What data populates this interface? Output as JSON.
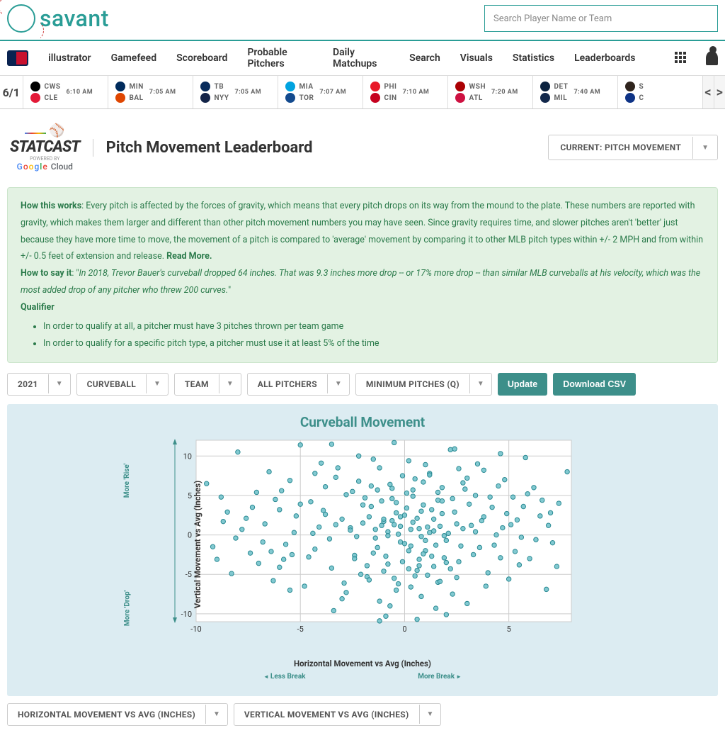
{
  "brand": "savant",
  "search_placeholder": "Search Player Name or Team",
  "nav": [
    "illustrator",
    "Gamefeed",
    "Scoreboard",
    "Probable Pitchers",
    "Daily Matchups",
    "Search",
    "Visuals",
    "Statistics",
    "Leaderboards"
  ],
  "scorebar": {
    "date": "6/1",
    "games": [
      {
        "away": "CWS",
        "home": "CLE",
        "time": "6:10 AM",
        "c1": "#000",
        "c2": "#e31937"
      },
      {
        "away": "MIN",
        "home": "BAL",
        "time": "7:05 AM",
        "c1": "#002b5c",
        "c2": "#df4601"
      },
      {
        "away": "TB",
        "home": "NYY",
        "time": "7:05 AM",
        "c1": "#092c5c",
        "c2": "#132448"
      },
      {
        "away": "MIA",
        "home": "TOR",
        "time": "7:07 AM",
        "c1": "#00a3e0",
        "c2": "#134a8e"
      },
      {
        "away": "PHI",
        "home": "CIN",
        "time": "7:10 AM",
        "c1": "#e81828",
        "c2": "#c6011f"
      },
      {
        "away": "WSH",
        "home": "ATL",
        "time": "7:20 AM",
        "c1": "#ab0003",
        "c2": "#ce1141"
      },
      {
        "away": "DET",
        "home": "MIL",
        "time": "7:40 AM",
        "c1": "#0c2340",
        "c2": "#12284b"
      },
      {
        "away": "S",
        "home": "C",
        "time": "",
        "c1": "#2f241d",
        "c2": "#0e3386"
      }
    ]
  },
  "page_title": "Pitch Movement Leaderboard",
  "current_dd": "CURRENT: PITCH MOVEMENT",
  "info": {
    "h1_label": "How this works",
    "h1_text": ": Every pitch is affected by the forces of gravity, which means that every pitch drops on its way from the mound to the plate. These numbers are reported with gravity, which makes them larger and different than other pitch movement numbers you may have seen. Since gravity requires time, and slower pitches aren't 'better' just because they have more time to move, the movement of a pitch is compared to 'average' movement by comparing it to other MLB pitch types within +/- 2 MPH and from within +/- 0.5 feet of extension and release. ",
    "readmore": "Read More.",
    "h2_label": "How to say it",
    "h2_text": "In 2018, Trevor Bauer's curveball dropped 64 inches. That was 9.3 inches more drop -- or 17% more drop -- than similar MLB curveballs at his velocity, which was the most added drop of any pitcher who threw 200 curves.",
    "q_label": "Qualifier",
    "q1": "In order to qualify at all, a pitcher must have 3 pitches thrown per team game",
    "q2": "In order to qualify for a specific pitch type, a pitcher must use it at least 5% of the time"
  },
  "filters": {
    "year": "2021",
    "pitch": "CURVEBALL",
    "team": "TEAM",
    "who": "ALL PITCHERS",
    "min": "MINIMUM PITCHES (Q)",
    "update": "Update",
    "csv": "Download CSV"
  },
  "chart": {
    "title": "Curveball Movement",
    "xlabel": "Horizontal Movement vs Avg (Inches)",
    "ylabel": "Vertical Movement vs Avg (Inches)",
    "y_top": "More 'Rise'",
    "y_bot": "More 'Drop'",
    "x_left": "Less Break",
    "x_right": "More Break",
    "xlim": [
      -10,
      8
    ],
    "ylim": [
      -11,
      12
    ],
    "xticks": [
      -10,
      -5,
      0,
      5
    ],
    "yticks": [
      -10,
      -5,
      0,
      5,
      10
    ],
    "bg": "#ffffff",
    "grid": "#cccccc",
    "axis": "#666",
    "point_fill": "#6cc0c9",
    "point_stroke": "#2a8a93",
    "point_r": 3.2,
    "points": [
      [
        -9.5,
        6.5
      ],
      [
        -9.2,
        -1.5
      ],
      [
        -8.8,
        4.8
      ],
      [
        -8.3,
        -4.9
      ],
      [
        -8.0,
        10.5
      ],
      [
        -7.6,
        2.1
      ],
      [
        -7.4,
        -2.3
      ],
      [
        -7.1,
        5.4
      ],
      [
        -6.8,
        -0.9
      ],
      [
        -6.5,
        8.0
      ],
      [
        -6.3,
        -5.8
      ],
      [
        -6.0,
        3.2
      ],
      [
        -5.8,
        -3.1
      ],
      [
        -5.5,
        6.9
      ],
      [
        -5.3,
        0.3
      ],
      [
        -5.0,
        11.4
      ],
      [
        -4.8,
        -6.5
      ],
      [
        -4.5,
        4.2
      ],
      [
        -4.3,
        -1.8
      ],
      [
        -4.0,
        9.1
      ],
      [
        -3.8,
        2.6
      ],
      [
        -3.5,
        -4.2
      ],
      [
        -3.3,
        7.3
      ],
      [
        -3.0,
        -8.1
      ],
      [
        -2.8,
        5.1
      ],
      [
        -2.6,
        0.9
      ],
      [
        -2.4,
        -2.6
      ],
      [
        -2.2,
        10.0
      ],
      [
        -2.0,
        3.8
      ],
      [
        -1.8,
        -5.3
      ],
      [
        -1.6,
        6.2
      ],
      [
        -1.4,
        -0.4
      ],
      [
        -1.2,
        8.5
      ],
      [
        -1.0,
        1.7
      ],
      [
        -0.8,
        -3.7
      ],
      [
        -0.6,
        4.6
      ],
      [
        -0.4,
        -7.0
      ],
      [
        -0.2,
        2.3
      ],
      [
        0.0,
        -1.1
      ],
      [
        0.2,
        9.4
      ],
      [
        0.4,
        5.7
      ],
      [
        0.6,
        -4.5
      ],
      [
        0.8,
        3.0
      ],
      [
        1.0,
        -2.0
      ],
      [
        1.2,
        7.8
      ],
      [
        1.4,
        0.5
      ],
      [
        1.6,
        -6.0
      ],
      [
        1.8,
        4.3
      ],
      [
        2.0,
        -0.7
      ],
      [
        2.2,
        10.8
      ],
      [
        2.4,
        2.9
      ],
      [
        2.6,
        -3.4
      ],
      [
        2.8,
        6.6
      ],
      [
        3.0,
        -8.7
      ],
      [
        3.2,
        1.2
      ],
      [
        3.4,
        5.0
      ],
      [
        3.6,
        -1.6
      ],
      [
        3.8,
        8.2
      ],
      [
        4.0,
        -4.8
      ],
      [
        4.2,
        3.5
      ],
      [
        4.4,
        0.0
      ],
      [
        4.6,
        -2.9
      ],
      [
        4.8,
        7.0
      ],
      [
        5.0,
        -5.6
      ],
      [
        5.2,
        4.8
      ],
      [
        5.4,
        1.9
      ],
      [
        5.6,
        -0.3
      ],
      [
        5.8,
        9.8
      ],
      [
        6.0,
        -3.0
      ],
      [
        6.2,
        6.0
      ],
      [
        6.5,
        2.4
      ],
      [
        6.8,
        -6.9
      ],
      [
        7.1,
        -1.0
      ],
      [
        7.4,
        4.0
      ],
      [
        7.8,
        8.0
      ],
      [
        -3.5,
        11.5
      ],
      [
        -0.5,
        11.7
      ],
      [
        2.4,
        10.9
      ],
      [
        4.6,
        10.3
      ],
      [
        -1.0,
        2.0
      ],
      [
        -0.5,
        1.3
      ],
      [
        0.3,
        0.7
      ],
      [
        0.8,
        -0.2
      ],
      [
        1.1,
        1.0
      ],
      [
        0.6,
        2.1
      ],
      [
        -0.2,
        -0.9
      ],
      [
        1.5,
        -1.3
      ],
      [
        0.9,
        -2.4
      ],
      [
        -0.8,
        0.4
      ],
      [
        1.8,
        2.7
      ],
      [
        0.1,
        3.4
      ],
      [
        -1.3,
        -1.6
      ],
      [
        2.1,
        0.2
      ],
      [
        -2.0,
        1.5
      ],
      [
        1.3,
        3.2
      ],
      [
        -0.4,
        2.8
      ],
      [
        0.7,
        -3.1
      ],
      [
        2.5,
        1.4
      ],
      [
        -1.6,
        3.6
      ],
      [
        0.4,
        4.9
      ],
      [
        1.9,
        -0.1
      ],
      [
        -0.9,
        -2.7
      ],
      [
        2.7,
        -1.4
      ],
      [
        0.2,
        -4.3
      ],
      [
        -2.3,
        -0.2
      ],
      [
        3.1,
        3.9
      ],
      [
        1.6,
        5.4
      ],
      [
        -1.1,
        4.3
      ],
      [
        2.3,
        4.6
      ],
      [
        -0.6,
        5.9
      ],
      [
        0.9,
        6.7
      ],
      [
        2.9,
        5.8
      ],
      [
        -2.5,
        5.5
      ],
      [
        1.4,
        -4.0
      ],
      [
        -1.8,
        -3.9
      ],
      [
        0.5,
        -5.2
      ],
      [
        2.0,
        -3.5
      ],
      [
        -0.3,
        -6.2
      ],
      [
        1.7,
        -5.9
      ],
      [
        -2.1,
        -5.0
      ],
      [
        3.3,
        -2.5
      ],
      [
        -3.0,
        2.0
      ],
      [
        -3.6,
        -0.5
      ],
      [
        -4.1,
        1.0
      ],
      [
        -4.6,
        -2.8
      ],
      [
        3.7,
        1.8
      ],
      [
        4.3,
        -1.3
      ],
      [
        4.9,
        2.7
      ],
      [
        5.3,
        -2.1
      ],
      [
        -5.2,
        2.4
      ],
      [
        -5.7,
        -1.2
      ],
      [
        -6.2,
        4.5
      ],
      [
        -6.7,
        1.4
      ],
      [
        5.7,
        3.6
      ],
      [
        6.3,
        -0.6
      ],
      [
        -7.0,
        -3.6
      ],
      [
        -7.8,
        0.7
      ],
      [
        -8.5,
        2.9
      ],
      [
        -9.0,
        -3.1
      ],
      [
        6.9,
        1.2
      ],
      [
        7.3,
        -4.0
      ],
      [
        -3.2,
        8.5
      ],
      [
        1.0,
        8.9
      ],
      [
        -1.5,
        9.6
      ],
      [
        3.5,
        9.0
      ],
      [
        -4.3,
        7.8
      ],
      [
        -0.1,
        7.5
      ],
      [
        2.6,
        8.4
      ],
      [
        -2.8,
        -7.3
      ],
      [
        0.8,
        -7.8
      ],
      [
        -1.2,
        -8.4
      ],
      [
        2.3,
        -7.5
      ],
      [
        -0.7,
        -9.0
      ],
      [
        1.5,
        -9.3
      ],
      [
        -3.4,
        -9.6
      ],
      [
        3.9,
        -6.5
      ],
      [
        -5.5,
        -7.0
      ],
      [
        4.5,
        6.2
      ],
      [
        -6.0,
        -4.1
      ],
      [
        5.5,
        -3.8
      ],
      [
        -0.9,
        -10.3
      ],
      [
        0.6,
        -10.7
      ],
      [
        2.0,
        -10.1
      ],
      [
        -0.3,
        0.1
      ],
      [
        0.4,
        1.6
      ],
      [
        1.2,
        0.3
      ],
      [
        -0.6,
        1.8
      ],
      [
        0.0,
        2.5
      ],
      [
        -1.4,
        0.7
      ],
      [
        1.7,
        1.1
      ],
      [
        0.3,
        -1.4
      ],
      [
        -0.8,
        -0.1
      ],
      [
        1.0,
        -0.7
      ],
      [
        -1.1,
        1.2
      ],
      [
        0.7,
        0.8
      ],
      [
        -0.2,
        1.1
      ],
      [
        1.4,
        2.0
      ],
      [
        -1.7,
        2.3
      ],
      [
        0.9,
        3.8
      ],
      [
        -0.4,
        4.1
      ],
      [
        1.6,
        4.4
      ],
      [
        -1.9,
        4.7
      ],
      [
        0.1,
        5.3
      ],
      [
        -1.3,
        5.7
      ],
      [
        1.8,
        6.0
      ],
      [
        -0.7,
        6.4
      ],
      [
        0.5,
        7.1
      ],
      [
        -2.2,
        6.8
      ],
      [
        1.2,
        7.6
      ],
      [
        3.0,
        7.2
      ],
      [
        -3.8,
        6.1
      ],
      [
        0.2,
        -2.0
      ],
      [
        -1.5,
        -2.3
      ],
      [
        1.3,
        -2.7
      ],
      [
        -0.1,
        -3.4
      ],
      [
        1.9,
        -2.9
      ],
      [
        -2.4,
        -3.0
      ],
      [
        0.7,
        -3.9
      ],
      [
        -1.0,
        -4.6
      ],
      [
        2.2,
        -4.3
      ],
      [
        -0.5,
        -5.5
      ],
      [
        1.1,
        -5.1
      ],
      [
        -1.7,
        -5.7
      ],
      [
        0.3,
        -6.6
      ],
      [
        2.5,
        -5.4
      ],
      [
        -2.9,
        -6.1
      ],
      [
        -2.6,
        0.6
      ],
      [
        2.8,
        0.8
      ],
      [
        -3.3,
        1.3
      ],
      [
        3.4,
        0.4
      ],
      [
        -3.9,
        3.1
      ],
      [
        3.8,
        2.3
      ],
      [
        -4.4,
        0.2
      ],
      [
        4.1,
        4.8
      ],
      [
        -5.0,
        3.9
      ],
      [
        4.7,
        0.9
      ],
      [
        -5.4,
        -2.5
      ],
      [
        5.1,
        1.3
      ],
      [
        -5.9,
        5.6
      ],
      [
        -6.4,
        -2.1
      ],
      [
        5.9,
        5.2
      ],
      [
        -7.3,
        3.5
      ],
      [
        6.6,
        4.4
      ],
      [
        -8.1,
        -0.4
      ],
      [
        7.0,
        2.8
      ],
      [
        -8.7,
        1.7
      ],
      [
        -1.2,
        -10.9
      ]
    ]
  },
  "bottom_filters": {
    "x": "HORIZONTAL MOVEMENT VS AVG (INCHES)",
    "y": "VERTICAL MOVEMENT VS AVG (INCHES)"
  }
}
